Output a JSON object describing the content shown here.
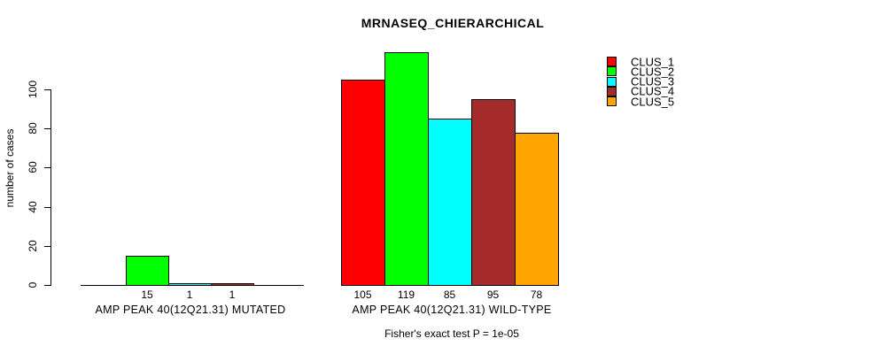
{
  "chart_data": {
    "type": "bar",
    "title": "MRNASEQ_CHIERARCHICAL",
    "ylabel": "number of cases",
    "xlabel": "",
    "ylim": [
      0,
      100
    ],
    "yticks": [
      0,
      20,
      40,
      60,
      80,
      100
    ],
    "grid": false,
    "legend_position": "top-right",
    "series": [
      {
        "name": "CLUS_1",
        "color": "#FF0000",
        "values": [
          0,
          105
        ]
      },
      {
        "name": "CLUS_2",
        "color": "#00FF00",
        "values": [
          15,
          119
        ]
      },
      {
        "name": "CLUS_3",
        "color": "#00FFFF",
        "values": [
          1,
          85
        ]
      },
      {
        "name": "CLUS_4",
        "color": "#A52A2A",
        "values": [
          1,
          95
        ]
      },
      {
        "name": "CLUS_5",
        "color": "#FFA500",
        "values": [
          0,
          78
        ]
      }
    ],
    "groups": [
      {
        "label": "AMP PEAK 40(12Q21.31) MUTATED",
        "values": [
          0,
          15,
          1,
          1,
          0
        ],
        "value_labels": [
          "",
          "15",
          "1",
          "1",
          ""
        ]
      },
      {
        "label": "AMP PEAK 40(12Q21.31) WILD-TYPE",
        "values": [
          105,
          119,
          85,
          95,
          78
        ],
        "value_labels": [
          "105",
          "119",
          "85",
          "95",
          "78"
        ]
      }
    ],
    "annotation": "Fisher's exact test P = 1e-05"
  },
  "colors": {
    "background": "#FFFFFF",
    "axis": "#000000",
    "text": "#000000"
  }
}
